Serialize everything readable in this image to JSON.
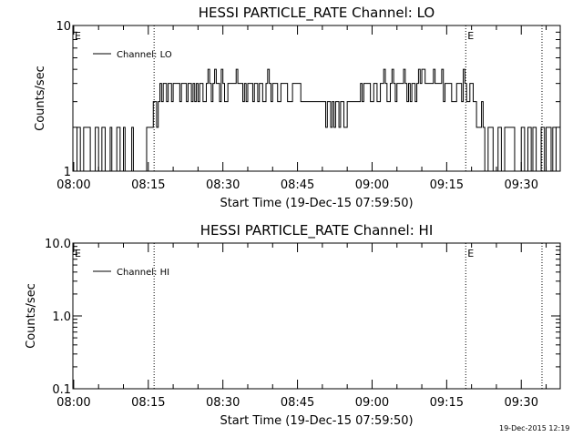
{
  "footer_timestamp": "19-Dec-2015 12:19",
  "chart_data": [
    {
      "type": "line",
      "title": "HESSI PARTICLE_RATE Channel: LO",
      "xlabel": "Start Time (19-Dec-15 07:59:50)",
      "ylabel": "Counts/sec",
      "y_scale": "log",
      "ylim": [
        1,
        10
      ],
      "y_ticks": [
        {
          "value": 1,
          "label": "1"
        },
        {
          "value": 10,
          "label": "10"
        }
      ],
      "x_range": [
        "07:59:50",
        "09:37:50"
      ],
      "x_ticks": [
        "08:00",
        "08:15",
        "08:30",
        "08:45",
        "09:00",
        "09:15",
        "09:30"
      ],
      "vlines": [
        "08:16:10",
        "09:18:50",
        "09:34:10"
      ],
      "markers": [
        {
          "label": "E",
          "x": "07:59:50"
        },
        {
          "label": "E",
          "x": "09:18:50"
        }
      ],
      "legend": {
        "position": "top-left",
        "entries": [
          "Channel: LO"
        ]
      },
      "series": [
        {
          "name": "Channel: LO",
          "x_start": "08:00:00",
          "x_step_seconds": 20,
          "values": [
            1,
            1,
            2,
            2,
            1,
            1,
            2,
            2,
            2,
            2,
            1,
            1,
            1,
            2,
            2,
            1,
            1,
            2,
            2,
            1,
            1,
            1,
            2,
            1,
            1,
            1,
            2,
            2,
            1,
            1,
            2,
            1,
            1,
            1,
            1,
            2,
            1,
            1,
            1,
            1,
            1,
            1,
            1,
            1,
            2,
            2,
            2,
            2,
            3,
            3,
            2,
            3,
            4,
            3,
            4,
            4,
            3,
            4,
            4,
            3,
            4,
            4,
            4,
            4,
            3,
            4,
            4,
            4,
            3,
            4,
            4,
            3,
            4,
            3,
            4,
            3,
            4,
            4,
            3,
            3,
            4,
            5,
            4,
            3,
            4,
            5,
            4,
            4,
            3,
            5,
            4,
            3,
            3,
            4,
            4,
            4,
            4,
            4,
            5,
            4,
            4,
            4,
            3,
            4,
            3,
            4,
            4,
            4,
            3,
            4,
            4,
            3,
            4,
            4,
            3,
            3,
            4,
            5,
            4,
            3,
            4,
            4,
            4,
            3,
            3,
            4,
            4,
            4,
            4,
            3,
            3,
            3,
            4,
            4,
            4,
            4,
            4,
            3,
            3,
            3,
            3,
            3,
            3,
            3,
            3,
            3,
            3,
            3,
            3,
            3,
            3,
            3,
            2,
            3,
            3,
            2,
            3,
            2,
            3,
            3,
            2,
            3,
            3,
            2,
            2,
            3,
            3,
            3,
            3,
            3,
            3,
            3,
            3,
            4,
            3,
            4,
            4,
            4,
            4,
            3,
            3,
            4,
            4,
            3,
            3,
            4,
            4,
            5,
            4,
            3,
            3,
            4,
            5,
            4,
            3,
            4,
            4,
            4,
            4,
            5,
            4,
            3,
            4,
            3,
            4,
            4,
            3,
            4,
            5,
            4,
            5,
            5,
            4,
            4,
            4,
            4,
            4,
            5,
            4,
            4,
            4,
            4,
            5,
            3,
            4,
            4,
            4,
            4,
            3,
            3,
            3,
            4,
            4,
            4,
            3,
            5,
            4,
            3,
            3,
            4,
            4,
            3,
            3,
            2,
            2,
            2,
            3,
            2,
            1,
            1,
            2,
            2,
            2,
            1,
            1,
            1,
            2,
            2,
            1,
            1,
            2,
            2,
            2,
            2,
            2,
            2,
            1,
            1,
            1,
            1,
            2,
            2,
            1,
            1,
            2,
            2,
            1,
            2,
            2,
            1,
            1,
            1,
            2,
            2,
            1,
            2,
            2,
            2,
            1,
            2,
            2,
            1,
            1
          ]
        }
      ]
    },
    {
      "type": "line",
      "title": "HESSI PARTICLE_RATE Channel: HI",
      "xlabel": "Start Time (19-Dec-15 07:59:50)",
      "ylabel": "Counts/sec",
      "y_scale": "log",
      "ylim": [
        0.1,
        10
      ],
      "y_ticks": [
        {
          "value": 0.1,
          "label": "0.1"
        },
        {
          "value": 1,
          "label": "1.0"
        },
        {
          "value": 10,
          "label": "10.0"
        }
      ],
      "x_range": [
        "07:59:50",
        "09:37:50"
      ],
      "x_ticks": [
        "08:00",
        "08:15",
        "08:30",
        "08:45",
        "09:00",
        "09:15",
        "09:30"
      ],
      "vlines": [
        "08:16:10",
        "09:18:50",
        "09:34:10"
      ],
      "markers": [
        {
          "label": "E",
          "x": "07:59:50"
        },
        {
          "label": "E",
          "x": "09:18:50"
        }
      ],
      "legend": {
        "position": "top-left",
        "entries": [
          "Channel: HI"
        ]
      },
      "series": [
        {
          "name": "Channel: HI",
          "values": []
        }
      ]
    }
  ]
}
